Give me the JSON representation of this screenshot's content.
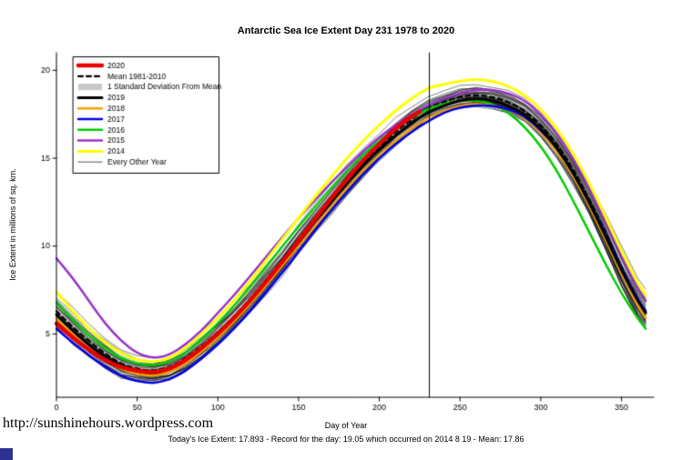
{
  "page": {
    "watermark": "http://sunshinehours.wordpress.com",
    "caption": "Today's Ice Extent: 17.893  - Record for the day: 19.05 which occurred on 2014 8 19  - Mean: 17.86"
  },
  "chart_data": {
    "type": "line",
    "title": "Antarctic Sea Ice Extent Day 231 1978 to 2020",
    "xlabel": "Day of Year",
    "ylabel": "Ice Extent in millions of sq. km.",
    "xlim": [
      0,
      370
    ],
    "ylim": [
      1.4,
      21.0
    ],
    "xticks": [
      0,
      50,
      100,
      150,
      200,
      250,
      300,
      350
    ],
    "yticks": [
      5,
      10,
      15,
      20
    ],
    "vline_x": 231,
    "grid": false,
    "legend_position": "top-left",
    "x": [
      0,
      10,
      20,
      30,
      40,
      50,
      60,
      70,
      80,
      90,
      100,
      110,
      120,
      130,
      140,
      150,
      160,
      170,
      180,
      190,
      200,
      210,
      220,
      230,
      240,
      250,
      260,
      270,
      280,
      290,
      300,
      310,
      320,
      330,
      340,
      350,
      360,
      365
    ],
    "band": {
      "name": "1 Standard Deviation From Mean",
      "color": "#CCCCCC",
      "mean": [
        6.3,
        5.4,
        4.6,
        3.9,
        3.3,
        3.0,
        2.9,
        3.1,
        3.6,
        4.3,
        5.1,
        6.0,
        7.0,
        8.1,
        9.2,
        10.4,
        11.5,
        12.6,
        13.7,
        14.7,
        15.6,
        16.5,
        17.2,
        17.86,
        18.2,
        18.5,
        18.6,
        18.5,
        18.2,
        17.7,
        16.9,
        15.8,
        14.4,
        12.7,
        10.8,
        8.8,
        7.0,
        6.3
      ],
      "std": [
        0.7,
        0.65,
        0.6,
        0.55,
        0.5,
        0.45,
        0.45,
        0.45,
        0.45,
        0.5,
        0.5,
        0.5,
        0.5,
        0.5,
        0.5,
        0.5,
        0.5,
        0.5,
        0.5,
        0.5,
        0.45,
        0.45,
        0.45,
        0.4,
        0.4,
        0.4,
        0.4,
        0.4,
        0.4,
        0.4,
        0.45,
        0.5,
        0.55,
        0.6,
        0.65,
        0.7,
        0.7,
        0.7
      ]
    },
    "series": [
      {
        "name": "Mean 1981-2010",
        "color": "#000000",
        "width": 2.2,
        "dash": [
          5,
          4
        ],
        "values": [
          6.3,
          5.4,
          4.6,
          3.9,
          3.3,
          3.0,
          2.9,
          3.1,
          3.6,
          4.3,
          5.1,
          6.0,
          7.0,
          8.1,
          9.2,
          10.4,
          11.5,
          12.6,
          13.7,
          14.7,
          15.6,
          16.5,
          17.2,
          17.86,
          18.2,
          18.5,
          18.6,
          18.5,
          18.2,
          17.7,
          16.9,
          15.8,
          14.4,
          12.7,
          10.8,
          8.8,
          7.0,
          6.3
        ]
      },
      {
        "name": "2016",
        "color": "#00CC00",
        "width": 2.5,
        "values": [
          6.8,
          5.8,
          4.9,
          4.2,
          3.6,
          3.3,
          3.2,
          3.4,
          3.9,
          4.7,
          5.6,
          6.6,
          7.7,
          8.8,
          10.0,
          11.1,
          12.2,
          13.3,
          14.3,
          15.2,
          16.0,
          16.7,
          17.3,
          17.8,
          18.1,
          18.3,
          18.3,
          18.1,
          17.6,
          16.8,
          15.7,
          14.3,
          12.6,
          10.8,
          9.0,
          7.3,
          5.9,
          5.3
        ]
      },
      {
        "name": "2018",
        "color": "#F2A200",
        "width": 2.5,
        "values": [
          5.9,
          5.0,
          4.2,
          3.5,
          3.0,
          2.7,
          2.6,
          2.8,
          3.3,
          4.0,
          4.8,
          5.7,
          6.7,
          7.8,
          8.9,
          10.0,
          11.1,
          12.2,
          13.3,
          14.3,
          15.2,
          16.0,
          16.7,
          17.3,
          17.7,
          18.0,
          18.1,
          18.0,
          17.8,
          17.3,
          16.5,
          15.4,
          14.0,
          12.3,
          10.4,
          8.4,
          6.6,
          5.9
        ]
      },
      {
        "name": "2017",
        "color": "#0000EE",
        "width": 2.5,
        "values": [
          5.3,
          4.5,
          3.8,
          3.1,
          2.6,
          2.3,
          2.2,
          2.4,
          2.9,
          3.6,
          4.4,
          5.3,
          6.3,
          7.4,
          8.5,
          9.7,
          10.9,
          12.0,
          13.1,
          14.1,
          15.0,
          15.8,
          16.5,
          17.1,
          17.6,
          17.9,
          18.0,
          18.0,
          17.8,
          17.4,
          16.6,
          15.6,
          14.2,
          12.5,
          10.7,
          8.7,
          7.0,
          6.3
        ]
      },
      {
        "name": "2015",
        "color": "#9933CC",
        "width": 2.5,
        "values": [
          9.3,
          8.2,
          6.9,
          5.6,
          4.6,
          3.9,
          3.6,
          3.8,
          4.4,
          5.2,
          6.2,
          7.2,
          8.3,
          9.4,
          10.5,
          11.6,
          12.6,
          13.6,
          14.5,
          15.4,
          16.2,
          16.9,
          17.5,
          18.0,
          18.4,
          18.7,
          18.9,
          18.9,
          18.7,
          18.3,
          17.5,
          16.4,
          15.0,
          13.3,
          11.4,
          9.4,
          7.6,
          6.9
        ]
      },
      {
        "name": "2014",
        "color": "#FFFF00",
        "width": 3,
        "values": [
          7.4,
          6.3,
          5.3,
          4.5,
          3.9,
          3.5,
          3.4,
          3.6,
          4.2,
          5.0,
          5.9,
          6.9,
          8.0,
          9.2,
          10.4,
          11.6,
          12.8,
          13.9,
          15.0,
          16.0,
          16.9,
          17.7,
          18.4,
          19.0,
          19.2,
          19.4,
          19.5,
          19.4,
          19.1,
          18.6,
          17.8,
          16.7,
          15.3,
          13.6,
          11.7,
          9.7,
          7.9,
          7.2
        ]
      },
      {
        "name": "2019",
        "color": "#000000",
        "width": 3,
        "values": [
          6.1,
          5.2,
          4.4,
          3.7,
          3.2,
          2.9,
          2.8,
          3.0,
          3.5,
          4.2,
          5.0,
          5.9,
          6.9,
          8.0,
          9.1,
          10.2,
          11.4,
          12.5,
          13.6,
          14.6,
          15.5,
          16.3,
          17.0,
          17.6,
          18.0,
          18.3,
          18.4,
          18.3,
          18.0,
          17.5,
          16.7,
          15.6,
          14.2,
          12.5,
          10.6,
          8.6,
          6.9,
          6.2
        ]
      },
      {
        "name": "2020",
        "color": "#E60000",
        "width": 4.5,
        "values": [
          5.6,
          4.8,
          4.1,
          3.5,
          3.1,
          2.9,
          2.8,
          3.0,
          3.5,
          4.2,
          5.0,
          5.9,
          6.9,
          8.0,
          9.1,
          10.3,
          11.5,
          12.7,
          13.8,
          14.9,
          15.8,
          16.7,
          17.4,
          17.893,
          null,
          null,
          null,
          null,
          null,
          null,
          null,
          null,
          null,
          null,
          null,
          null,
          null,
          null
        ]
      }
    ],
    "background": {
      "name": "Every Other Year",
      "count": 30,
      "seed": 42,
      "color": "#000000",
      "width": 0.6
    },
    "legend": {
      "entries": [
        {
          "label": "2020",
          "color": "#E60000",
          "width": 4.5
        },
        {
          "label": "Mean 1981-2010",
          "color": "#000000",
          "width": 2.2,
          "dash": [
            5,
            4
          ]
        },
        {
          "label": "1 Standard Deviation From Mean",
          "color": "#C8C8C8",
          "width": 7,
          "band": true
        },
        {
          "label": "2019",
          "color": "#000000",
          "width": 3
        },
        {
          "label": "2018",
          "color": "#F2A200",
          "width": 2.5
        },
        {
          "label": "2017",
          "color": "#0000EE",
          "width": 2.5
        },
        {
          "label": "2016",
          "color": "#00CC00",
          "width": 2.5
        },
        {
          "label": "2015",
          "color": "#9933CC",
          "width": 2.5
        },
        {
          "label": "2014",
          "color": "#FFFF00",
          "width": 3
        },
        {
          "label": "Every Other Year",
          "color": "#000000",
          "width": 0.7
        }
      ]
    }
  }
}
